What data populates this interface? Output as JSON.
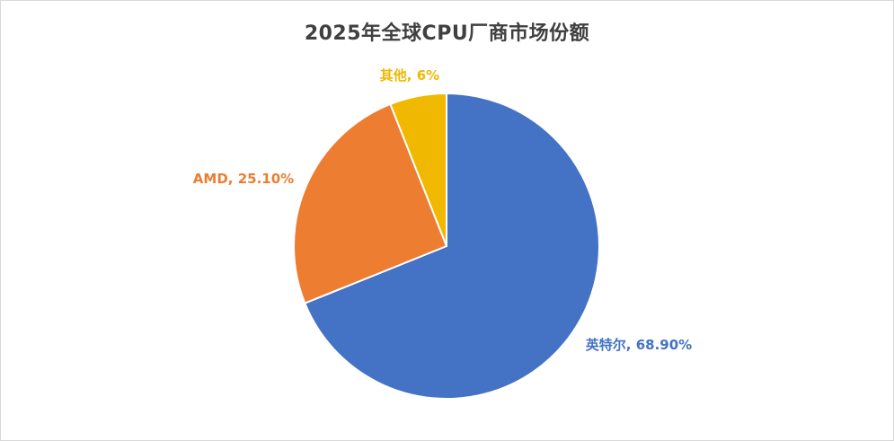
{
  "chart_data": {
    "type": "pie",
    "title": "2025年全球CPU厂商市场份额",
    "categories": [
      "英特尔",
      "AMD",
      "其他"
    ],
    "values": [
      68.9,
      25.1,
      6
    ],
    "data_labels": [
      "英特尔, 68.90%",
      "AMD, 25.10%",
      "其他, 6%"
    ],
    "colors": [
      "#4472C4",
      "#ED7D31",
      "#F0B800"
    ],
    "start_angle": "12 o'clock",
    "direction": "clockwise",
    "legend": "none"
  }
}
